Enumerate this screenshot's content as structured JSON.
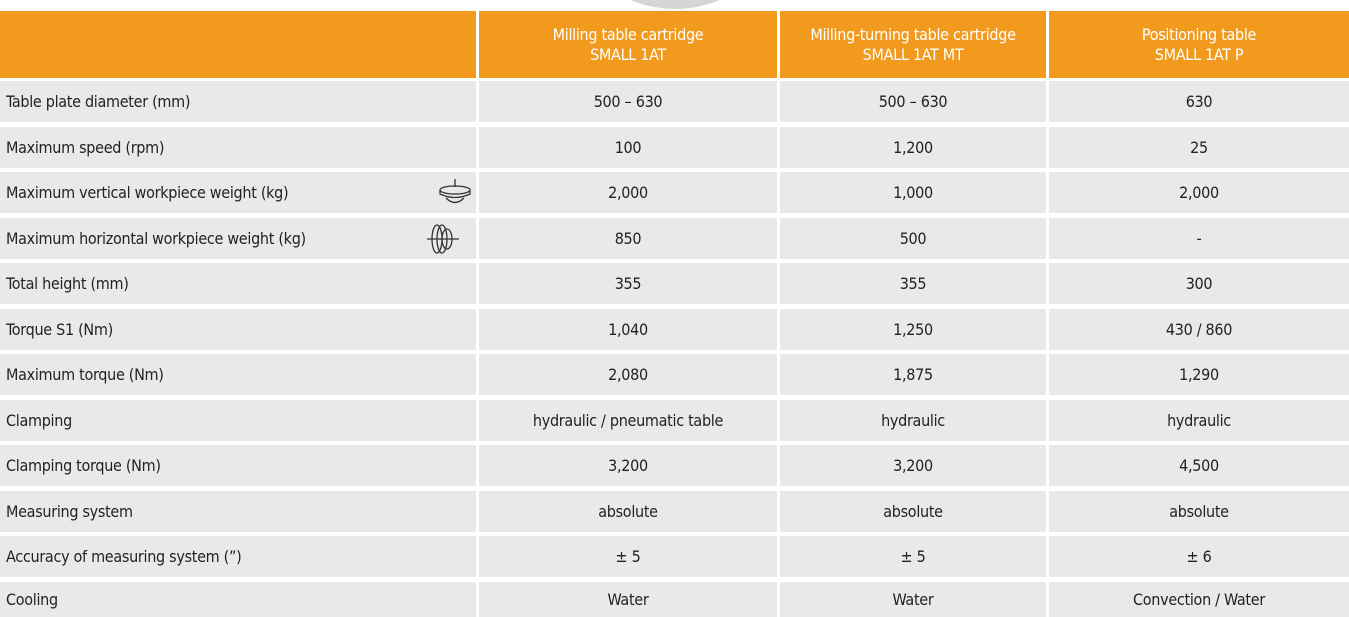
{
  "header": {
    "columns": [
      {
        "name": "Milling table cartridge",
        "model": "SMALL 1AT"
      },
      {
        "name": "Milling-turning table cartridge",
        "model": "SMALL 1AT MT"
      },
      {
        "name": "Positioning table",
        "model": "SMALL 1AT P"
      }
    ]
  },
  "table": {
    "rows": [
      {
        "label": "Table plate diameter (mm)",
        "values": [
          "500 – 630",
          "500 – 630",
          "630"
        ]
      },
      {
        "label": "Maximum speed (rpm)",
        "values": [
          "100",
          "1,200",
          "25"
        ]
      },
      {
        "label": "Maximum vertical workpiece weight (kg)",
        "values": [
          "2,000",
          "1,000",
          "2,000"
        ]
      },
      {
        "label": "Maximum horizontal workpiece weight (kg)",
        "values": [
          "850",
          "500",
          "-"
        ]
      },
      {
        "label": "Total height (mm)",
        "values": [
          "355",
          "355",
          "300"
        ]
      },
      {
        "label": "Torque S1 (Nm)",
        "values": [
          "1,040",
          "1,250",
          "430 / 860"
        ]
      },
      {
        "label": "Maximum torque (Nm)",
        "values": [
          "2,080",
          "1,875",
          "1,290"
        ]
      },
      {
        "label": "Clamping",
        "values": [
          "hydraulic / pneumatic table",
          "hydraulic",
          "hydraulic"
        ]
      },
      {
        "label": "Clamping torque (Nm)",
        "values": [
          "3,200",
          "3,200",
          "4,500"
        ]
      },
      {
        "label": "Measuring system",
        "values": [
          "absolute",
          "absolute",
          "absolute"
        ]
      },
      {
        "label": "Accuracy of measuring system (”)",
        "values": [
          "± 5",
          "± 5",
          "± 6"
        ]
      },
      {
        "label": "Cooling",
        "values": [
          "Water",
          "Water",
          "Convection / Water"
        ]
      }
    ]
  }
}
